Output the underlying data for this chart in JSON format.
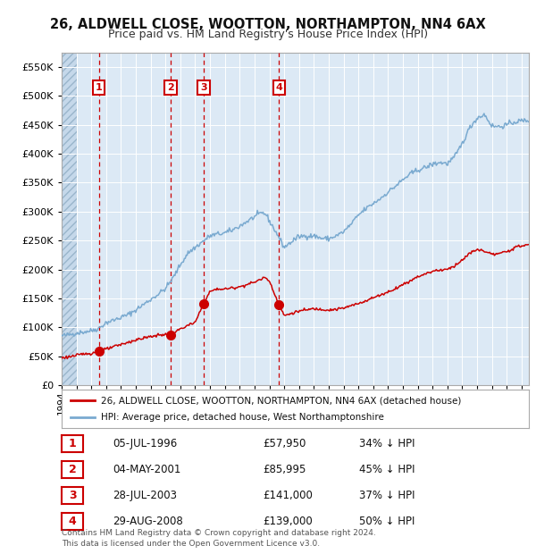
{
  "title1": "26, ALDWELL CLOSE, WOOTTON, NORTHAMPTON, NN4 6AX",
  "title2": "Price paid vs. HM Land Registry's House Price Index (HPI)",
  "ylim": [
    0,
    575000
  ],
  "xlim_start": 1994.0,
  "xlim_end": 2025.5,
  "background_color": "#dce9f5",
  "hatch_color": "#b8cfe0",
  "sale_color": "#cc0000",
  "hpi_color": "#7aaad0",
  "legend_label_sale": "26, ALDWELL CLOSE, WOOTTON, NORTHAMPTON, NN4 6AX (detached house)",
  "legend_label_hpi": "HPI: Average price, detached house, West Northamptonshire",
  "sales": [
    {
      "date": 1996.51,
      "price": 57950,
      "label": "1"
    },
    {
      "date": 2001.34,
      "price": 85995,
      "label": "2"
    },
    {
      "date": 2003.57,
      "price": 141000,
      "label": "3"
    },
    {
      "date": 2008.66,
      "price": 139000,
      "label": "4"
    }
  ],
  "sale_vlines": [
    1996.51,
    2001.34,
    2003.57,
    2008.66
  ],
  "annotations": [
    {
      "num": "1",
      "date": "05-JUL-1996",
      "price": "£57,950",
      "pct": "34% ↓ HPI"
    },
    {
      "num": "2",
      "date": "04-MAY-2001",
      "price": "£85,995",
      "pct": "45% ↓ HPI"
    },
    {
      "num": "3",
      "date": "28-JUL-2003",
      "price": "£141,000",
      "pct": "37% ↓ HPI"
    },
    {
      "num": "4",
      "date": "29-AUG-2008",
      "price": "£139,000",
      "pct": "50% ↓ HPI"
    }
  ],
  "footer": "Contains HM Land Registry data © Crown copyright and database right 2024.\nThis data is licensed under the Open Government Licence v3.0.",
  "yticks": [
    0,
    50000,
    100000,
    150000,
    200000,
    250000,
    300000,
    350000,
    400000,
    450000,
    500000,
    550000
  ],
  "ytick_labels": [
    "£0",
    "£50K",
    "£100K",
    "£150K",
    "£200K",
    "£250K",
    "£300K",
    "£350K",
    "£400K",
    "£450K",
    "£500K",
    "£550K"
  ],
  "hpi_anchors": [
    [
      1994.0,
      85000
    ],
    [
      1994.5,
      87000
    ],
    [
      1995.0,
      90000
    ],
    [
      1995.5,
      92000
    ],
    [
      1996.0,
      94000
    ],
    [
      1996.5,
      98000
    ],
    [
      1997.0,
      108000
    ],
    [
      1997.5,
      112000
    ],
    [
      1998.0,
      117000
    ],
    [
      1998.5,
      122000
    ],
    [
      1999.0,
      130000
    ],
    [
      1999.5,
      139000
    ],
    [
      2000.0,
      148000
    ],
    [
      2000.5,
      157000
    ],
    [
      2001.0,
      167000
    ],
    [
      2001.5,
      185000
    ],
    [
      2002.0,
      208000
    ],
    [
      2002.5,
      228000
    ],
    [
      2003.0,
      238000
    ],
    [
      2003.5,
      248000
    ],
    [
      2004.0,
      258000
    ],
    [
      2004.5,
      261000
    ],
    [
      2005.0,
      263000
    ],
    [
      2005.5,
      268000
    ],
    [
      2006.0,
      275000
    ],
    [
      2006.5,
      283000
    ],
    [
      2007.0,
      291000
    ],
    [
      2007.5,
      298000
    ],
    [
      2007.75,
      296000
    ],
    [
      2008.0,
      284000
    ],
    [
      2008.5,
      262000
    ],
    [
      2009.0,
      238000
    ],
    [
      2009.5,
      248000
    ],
    [
      2010.0,
      257000
    ],
    [
      2010.5,
      258000
    ],
    [
      2011.0,
      258000
    ],
    [
      2011.5,
      254000
    ],
    [
      2012.0,
      253000
    ],
    [
      2012.5,
      258000
    ],
    [
      2013.0,
      265000
    ],
    [
      2013.5,
      278000
    ],
    [
      2014.0,
      294000
    ],
    [
      2014.5,
      305000
    ],
    [
      2015.0,
      314000
    ],
    [
      2015.5,
      323000
    ],
    [
      2016.0,
      334000
    ],
    [
      2016.5,
      344000
    ],
    [
      2017.0,
      355000
    ],
    [
      2017.5,
      365000
    ],
    [
      2018.0,
      372000
    ],
    [
      2018.5,
      376000
    ],
    [
      2019.0,
      382000
    ],
    [
      2019.5,
      385000
    ],
    [
      2020.0,
      383000
    ],
    [
      2020.5,
      395000
    ],
    [
      2021.0,
      418000
    ],
    [
      2021.5,
      445000
    ],
    [
      2022.0,
      462000
    ],
    [
      2022.5,
      468000
    ],
    [
      2023.0,
      448000
    ],
    [
      2023.5,
      447000
    ],
    [
      2024.0,
      450000
    ],
    [
      2024.5,
      455000
    ],
    [
      2025.0,
      457000
    ],
    [
      2025.5,
      458000
    ]
  ],
  "sale_anchors": [
    [
      1994.0,
      47000
    ],
    [
      1994.5,
      49000
    ],
    [
      1995.0,
      51000
    ],
    [
      1995.5,
      54000
    ],
    [
      1996.0,
      55000
    ],
    [
      1996.51,
      57950
    ],
    [
      1997.0,
      62000
    ],
    [
      1997.5,
      66000
    ],
    [
      1998.0,
      70000
    ],
    [
      1998.5,
      74000
    ],
    [
      1999.0,
      78000
    ],
    [
      1999.5,
      81000
    ],
    [
      2000.0,
      84000
    ],
    [
      2000.5,
      86000
    ],
    [
      2001.0,
      88000
    ],
    [
      2001.34,
      85995
    ],
    [
      2001.7,
      92000
    ],
    [
      2002.0,
      97000
    ],
    [
      2002.5,
      103000
    ],
    [
      2003.0,
      108000
    ],
    [
      2003.57,
      141000
    ],
    [
      2004.0,
      162000
    ],
    [
      2004.5,
      166000
    ],
    [
      2005.0,
      166000
    ],
    [
      2005.5,
      168000
    ],
    [
      2006.0,
      170000
    ],
    [
      2006.5,
      174000
    ],
    [
      2007.0,
      178000
    ],
    [
      2007.5,
      184000
    ],
    [
      2007.75,
      186000
    ],
    [
      2008.0,
      180000
    ],
    [
      2008.66,
      139000
    ],
    [
      2009.0,
      120000
    ],
    [
      2009.5,
      124000
    ],
    [
      2010.0,
      128000
    ],
    [
      2010.5,
      130000
    ],
    [
      2011.0,
      132000
    ],
    [
      2011.5,
      131000
    ],
    [
      2012.0,
      130000
    ],
    [
      2012.5,
      131000
    ],
    [
      2013.0,
      133000
    ],
    [
      2013.5,
      137000
    ],
    [
      2014.0,
      141000
    ],
    [
      2014.5,
      146000
    ],
    [
      2015.0,
      151000
    ],
    [
      2015.5,
      156000
    ],
    [
      2016.0,
      161000
    ],
    [
      2016.5,
      167000
    ],
    [
      2017.0,
      174000
    ],
    [
      2017.5,
      180000
    ],
    [
      2018.0,
      188000
    ],
    [
      2018.5,
      192000
    ],
    [
      2019.0,
      197000
    ],
    [
      2019.5,
      199000
    ],
    [
      2020.0,
      200000
    ],
    [
      2020.5,
      207000
    ],
    [
      2021.0,
      216000
    ],
    [
      2021.5,
      228000
    ],
    [
      2022.0,
      234000
    ],
    [
      2022.5,
      232000
    ],
    [
      2023.0,
      226000
    ],
    [
      2023.5,
      227000
    ],
    [
      2024.0,
      231000
    ],
    [
      2024.5,
      237000
    ],
    [
      2025.0,
      241000
    ],
    [
      2025.5,
      243000
    ]
  ]
}
